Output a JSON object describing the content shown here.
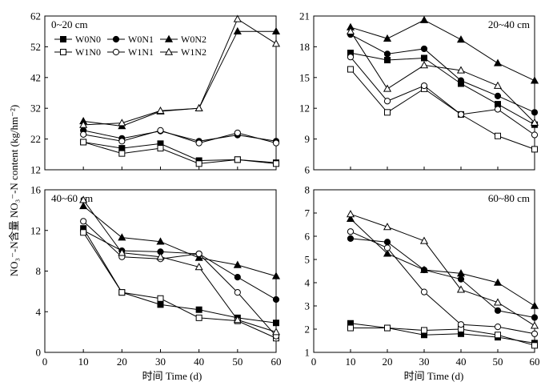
{
  "figure": {
    "ylabel": "NO₃⁻-N含量 NO₃⁻-N content (kg/hm⁻²)",
    "xlabel_bottom_left": "时间 Time (d)",
    "xlabel_bottom_right": "时间 Time (d)"
  },
  "legend": {
    "entries": [
      {
        "name": "W0N0",
        "marker": "square",
        "filled": true
      },
      {
        "name": "W0N1",
        "marker": "circle",
        "filled": true
      },
      {
        "name": "W0N2",
        "marker": "triangle",
        "filled": true
      },
      {
        "name": "W1N0",
        "marker": "square",
        "filled": false
      },
      {
        "name": "W1N1",
        "marker": "circle",
        "filled": false
      },
      {
        "name": "W1N2",
        "marker": "triangle",
        "filled": false
      }
    ]
  },
  "chart_data": [
    {
      "type": "line",
      "panel_label": "0~20 cm",
      "x": [
        10,
        20,
        30,
        40,
        50,
        60
      ],
      "xlim": [
        0,
        60
      ],
      "xticks": [
        0,
        10,
        20,
        30,
        40,
        50,
        60
      ],
      "xticklabels": [
        "",
        "",
        "",
        "",
        "",
        "",
        ""
      ],
      "ylim": [
        12,
        62
      ],
      "yticks": [
        12,
        22,
        32,
        42,
        52,
        62
      ],
      "yticklabels": [
        "12",
        "22",
        "32",
        "42",
        "52",
        "62"
      ],
      "series": [
        {
          "name": "W0N0",
          "values": [
            21.0,
            19.0,
            20.5,
            15.0,
            15.3,
            14.3
          ]
        },
        {
          "name": "W0N1",
          "values": [
            24.8,
            22.2,
            24.6,
            21.3,
            23.3,
            21.3
          ]
        },
        {
          "name": "W0N2",
          "values": [
            27.8,
            26.2,
            31.0,
            32.0,
            57.0,
            57.0
          ]
        },
        {
          "name": "W1N0",
          "values": [
            21.0,
            17.3,
            19.0,
            14.0,
            15.3,
            14.0
          ]
        },
        {
          "name": "W1N1",
          "values": [
            23.5,
            21.3,
            24.8,
            20.7,
            24.0,
            20.7
          ]
        },
        {
          "name": "W1N2",
          "values": [
            26.6,
            27.2,
            31.2,
            32.0,
            61.0,
            53.0
          ]
        }
      ]
    },
    {
      "type": "line",
      "panel_label": "20~40 cm",
      "x": [
        10,
        20,
        30,
        40,
        50,
        60
      ],
      "xlim": [
        0,
        60
      ],
      "xticks": [
        0,
        10,
        20,
        30,
        40,
        50,
        60
      ],
      "xticklabels": [
        "",
        "",
        "",
        "",
        "",
        "",
        ""
      ],
      "ylim": [
        6,
        21
      ],
      "yticks": [
        6,
        9,
        12,
        15,
        18,
        21
      ],
      "yticklabels": [
        "6",
        "9",
        "12",
        "15",
        "18",
        "21"
      ],
      "series": [
        {
          "name": "W0N0",
          "values": [
            17.4,
            16.7,
            16.9,
            14.4,
            12.4,
            10.4
          ]
        },
        {
          "name": "W0N1",
          "values": [
            19.2,
            17.3,
            17.8,
            14.7,
            13.2,
            11.6
          ]
        },
        {
          "name": "W0N2",
          "values": [
            19.9,
            18.8,
            20.6,
            18.7,
            16.4,
            14.7
          ]
        },
        {
          "name": "W1N0",
          "values": [
            15.8,
            11.6,
            13.9,
            11.4,
            9.3,
            8.0
          ]
        },
        {
          "name": "W1N1",
          "values": [
            17.0,
            12.7,
            14.2,
            11.4,
            11.9,
            9.4
          ]
        },
        {
          "name": "W1N2",
          "values": [
            19.5,
            13.9,
            16.2,
            15.7,
            14.2,
            10.6
          ]
        }
      ]
    },
    {
      "type": "line",
      "panel_label": "40~60 cm",
      "x": [
        10,
        20,
        30,
        40,
        50,
        60
      ],
      "xlim": [
        0,
        60
      ],
      "xticks": [
        0,
        10,
        20,
        30,
        40,
        50,
        60
      ],
      "xticklabels": [
        "0",
        "10",
        "20",
        "30",
        "40",
        "50",
        "60"
      ],
      "ylim": [
        0,
        16
      ],
      "yticks": [
        0,
        4,
        8,
        12,
        16
      ],
      "yticklabels": [
        "0",
        "4",
        "8",
        "12",
        "16"
      ],
      "series": [
        {
          "name": "W0N0",
          "values": [
            12.2,
            5.9,
            4.7,
            4.2,
            3.4,
            2.9
          ]
        },
        {
          "name": "W0N1",
          "values": [
            12.0,
            10.0,
            9.9,
            9.7,
            7.4,
            5.2
          ]
        },
        {
          "name": "W0N2",
          "values": [
            14.4,
            11.3,
            10.9,
            9.3,
            8.6,
            7.5
          ]
        },
        {
          "name": "W1N0",
          "values": [
            11.8,
            5.9,
            5.3,
            3.4,
            3.1,
            1.4
          ]
        },
        {
          "name": "W1N1",
          "values": [
            12.9,
            9.4,
            9.2,
            9.7,
            5.9,
            1.6
          ]
        },
        {
          "name": "W1N2",
          "values": [
            15.0,
            9.8,
            9.4,
            8.4,
            3.2,
            2.0
          ]
        }
      ]
    },
    {
      "type": "line",
      "panel_label": "60~80 cm",
      "x": [
        10,
        20,
        30,
        40,
        50,
        60
      ],
      "xlim": [
        0,
        60
      ],
      "xticks": [
        0,
        10,
        20,
        30,
        40,
        50,
        60
      ],
      "xticklabels": [
        "0",
        "10",
        "20",
        "30",
        "40",
        "50",
        "60"
      ],
      "ylim": [
        1,
        8
      ],
      "yticks": [
        1,
        2,
        3,
        4,
        5,
        6,
        7,
        8
      ],
      "yticklabels": [
        "1",
        "2",
        "3",
        "4",
        "5",
        "6",
        "7",
        "8"
      ],
      "series": [
        {
          "name": "W0N0",
          "values": [
            2.25,
            2.05,
            1.75,
            1.8,
            1.65,
            1.4
          ]
        },
        {
          "name": "W0N1",
          "values": [
            5.9,
            5.75,
            4.55,
            4.15,
            2.8,
            2.5
          ]
        },
        {
          "name": "W0N2",
          "values": [
            6.75,
            5.25,
            4.55,
            4.4,
            4.0,
            3.0
          ]
        },
        {
          "name": "W1N0",
          "values": [
            2.05,
            2.05,
            1.95,
            2.0,
            1.75,
            1.3
          ]
        },
        {
          "name": "W1N1",
          "values": [
            6.2,
            5.5,
            3.6,
            2.2,
            2.1,
            1.8
          ]
        },
        {
          "name": "W1N2",
          "values": [
            6.95,
            6.4,
            5.8,
            3.7,
            3.15,
            2.15
          ]
        }
      ]
    }
  ]
}
